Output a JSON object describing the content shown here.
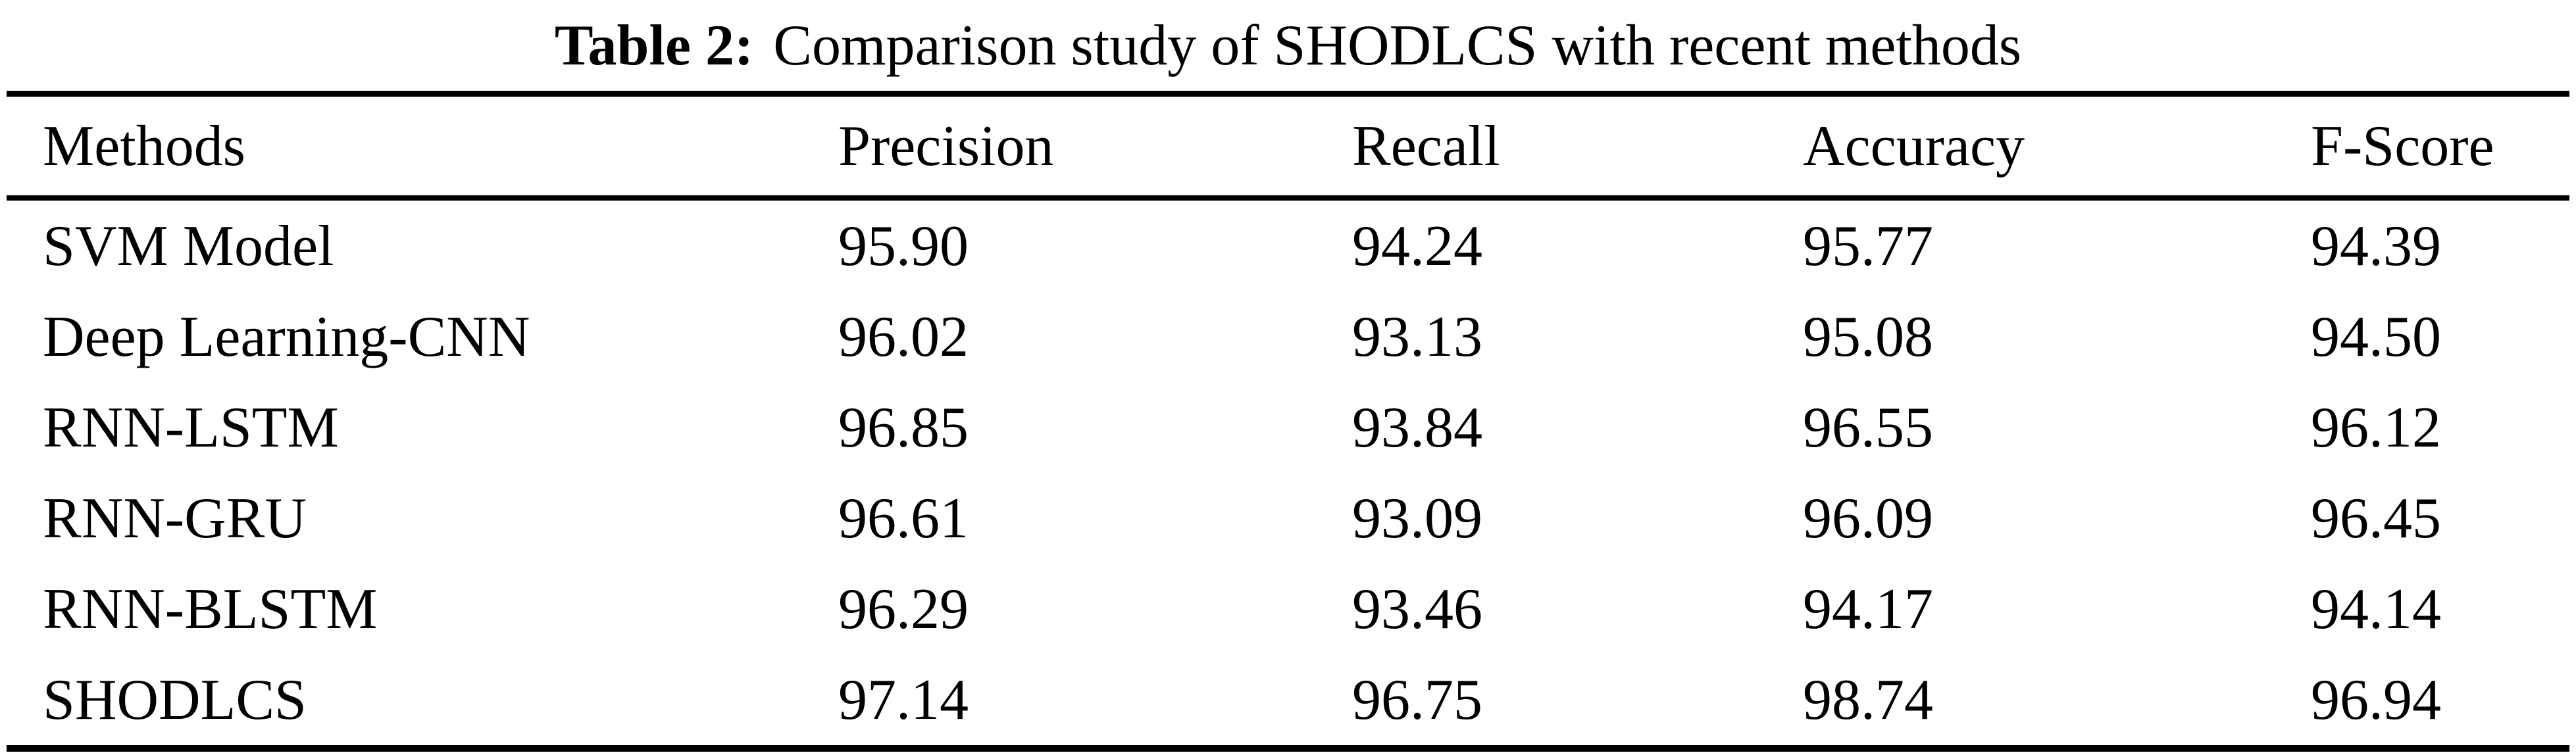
{
  "caption": {
    "label": "Table 2:",
    "text": "Comparison study of SHODLCS with recent methods"
  },
  "colors": {
    "text": "#000000",
    "background": "#ffffff",
    "rule": "#000000"
  },
  "table": {
    "columns": [
      "Methods",
      "Precision",
      "Recall",
      "Accuracy",
      "F-Score"
    ],
    "rows": [
      [
        "SVM Model",
        "95.90",
        "94.24",
        "95.77",
        "94.39"
      ],
      [
        "Deep Learning-CNN",
        "96.02",
        "93.13",
        "95.08",
        "94.50"
      ],
      [
        "RNN-LSTM",
        "96.85",
        "93.84",
        "96.55",
        "96.12"
      ],
      [
        "RNN-GRU",
        "96.61",
        "93.09",
        "96.09",
        "96.45"
      ],
      [
        "RNN-BLSTM",
        "96.29",
        "93.46",
        "94.17",
        "94.14"
      ],
      [
        "SHODLCS",
        "97.14",
        "96.75",
        "98.74",
        "96.94"
      ]
    ]
  }
}
